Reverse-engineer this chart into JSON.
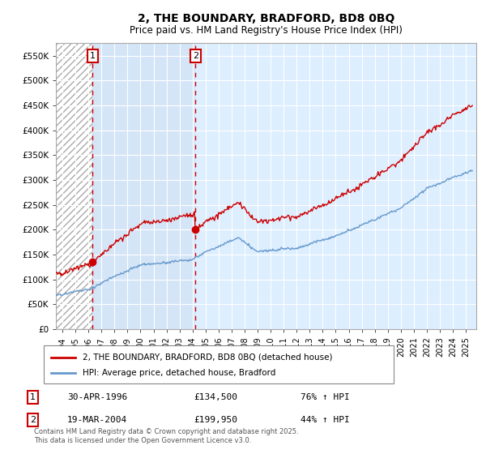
{
  "title": "2, THE BOUNDARY, BRADFORD, BD8 0BQ",
  "subtitle": "Price paid vs. HM Land Registry's House Price Index (HPI)",
  "legend_line1": "2, THE BOUNDARY, BRADFORD, BD8 0BQ (detached house)",
  "legend_line2": "HPI: Average price, detached house, Bradford",
  "footnote": "Contains HM Land Registry data © Crown copyright and database right 2025.\nThis data is licensed under the Open Government Licence v3.0.",
  "purchase1_date": "30-APR-1996",
  "purchase1_price": 134500,
  "purchase1_label": "1",
  "purchase1_pct": "76% ↑ HPI",
  "purchase2_date": "19-MAR-2004",
  "purchase2_price": 199950,
  "purchase2_label": "2",
  "purchase2_pct": "44% ↑ HPI",
  "purchase1_year": 1996.33,
  "purchase2_year": 2004.22,
  "ylim": [
    0,
    575000
  ],
  "xlim_start": 1993.5,
  "xlim_end": 2025.8,
  "red_color": "#cc0000",
  "blue_color": "#6699cc",
  "background_color": "#ddeeff",
  "ytick_labels": [
    "£0",
    "£50K",
    "£100K",
    "£150K",
    "£200K",
    "£250K",
    "£300K",
    "£350K",
    "£400K",
    "£450K",
    "£500K",
    "£550K"
  ],
  "ytick_values": [
    0,
    50000,
    100000,
    150000,
    200000,
    250000,
    300000,
    350000,
    400000,
    450000,
    500000,
    550000
  ],
  "xtick_years": [
    1994,
    1995,
    1996,
    1997,
    1998,
    1999,
    2000,
    2001,
    2002,
    2003,
    2004,
    2005,
    2006,
    2007,
    2008,
    2009,
    2010,
    2011,
    2012,
    2013,
    2014,
    2015,
    2016,
    2017,
    2018,
    2019,
    2020,
    2021,
    2022,
    2023,
    2024,
    2025
  ],
  "hpi_start_year": 1993.5,
  "hpi_end_year": 2025.5,
  "n_points": 500
}
